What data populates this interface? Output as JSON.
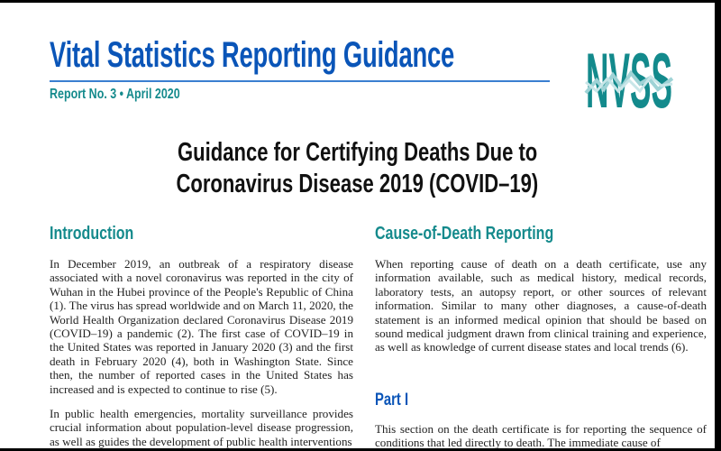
{
  "header": {
    "title": "Vital Statistics Reporting Guidance",
    "report": "Report No. 3 • April 2020",
    "logo_text": "NVSS"
  },
  "document": {
    "title_line1": "Guidance for Certifying Deaths Due to",
    "title_line2": "Coronavirus Disease 2019 (COVID–19)"
  },
  "introduction": {
    "heading": "Introduction",
    "paragraphs": [
      "In December 2019, an outbreak of a respiratory disease associated with a novel coronavirus was reported in the city of Wuhan in the Hubei province of the People's Republic of China (1). The virus has spread worldwide and on March 11, 2020, the World Health Organization declared Coronavirus Disease 2019 (COVID–19) a pandemic (2). The first case of COVID–19 in the United States was reported in January 2020 (3) and the first death in February 2020 (4), both in Washington State. Since then, the number of reported cases in the United States has increased and is expected to continue to rise (5).",
      "In public health emergencies, mortality surveillance provides crucial information about population-level disease progression, as well as guides the development of public health interventions"
    ]
  },
  "cause_of_death": {
    "heading": "Cause-of-Death Reporting",
    "paragraph": "When reporting cause of death on a death certificate, use any information available, such as medical history, medical records, laboratory tests, an autopsy report, or other sources of relevant information. Similar to many other diagnoses, a cause-of-death statement is an informed medical opinion that should be based on sound medical judgment drawn from clinical training and experience, as well as knowledge of current disease states and local trends (6).",
    "part_heading": "Part I",
    "part_paragraph": "This section on the death certificate is for reporting the sequence of conditions that led directly to death. The immediate cause of"
  },
  "colors": {
    "title_blue": "#0a55b8",
    "teal": "#148a8c"
  }
}
